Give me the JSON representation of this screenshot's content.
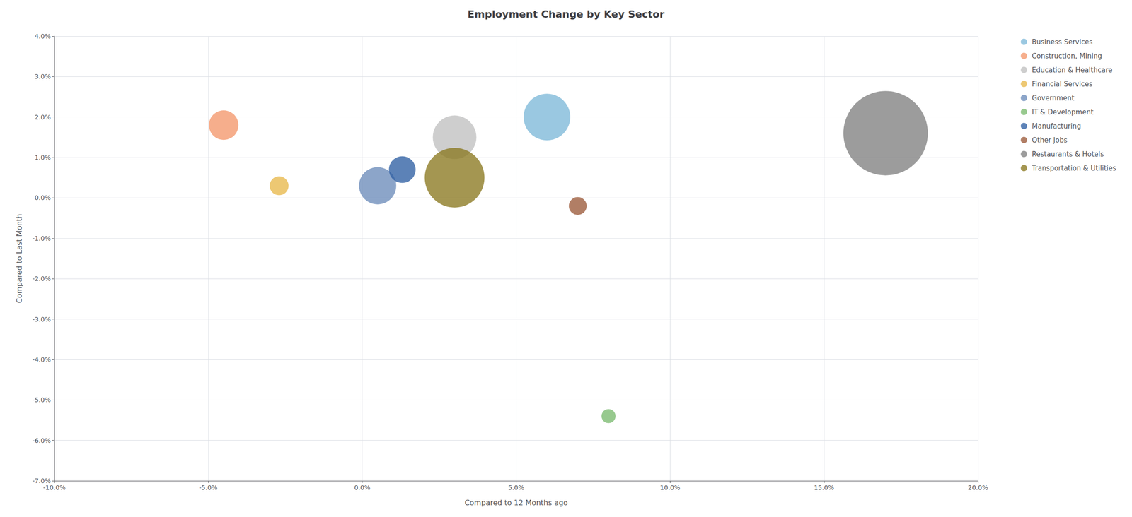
{
  "chart_data": {
    "type": "scatter",
    "title": "Employment Change by Key Sector",
    "xlabel": "Compared to 12 Months ago",
    "ylabel": "Compared to Last Month",
    "xlim": [
      -0.1,
      0.2
    ],
    "ylim": [
      -0.07,
      0.04
    ],
    "xticks": [
      {
        "value": -0.1,
        "label": "-10.0%"
      },
      {
        "value": -0.05,
        "label": "-5.0%"
      },
      {
        "value": 0.0,
        "label": "0.0%"
      },
      {
        "value": 0.05,
        "label": "5.0%"
      },
      {
        "value": 0.1,
        "label": "10.0%"
      },
      {
        "value": 0.15,
        "label": "15.0%"
      },
      {
        "value": 0.2,
        "label": "20.0%"
      }
    ],
    "yticks": [
      {
        "value": -0.07,
        "label": "-7.0%"
      },
      {
        "value": -0.06,
        "label": "-6.0%"
      },
      {
        "value": -0.05,
        "label": "-5.0%"
      },
      {
        "value": -0.04,
        "label": "-4.0%"
      },
      {
        "value": -0.03,
        "label": "-3.0%"
      },
      {
        "value": -0.02,
        "label": "-2.0%"
      },
      {
        "value": -0.01,
        "label": "-1.0%"
      },
      {
        "value": 0.0,
        "label": "0.0%"
      },
      {
        "value": 0.01,
        "label": "1.0%"
      },
      {
        "value": 0.02,
        "label": "2.0%"
      },
      {
        "value": 0.03,
        "label": "3.0%"
      },
      {
        "value": 0.04,
        "label": "4.0%"
      }
    ],
    "grid": true,
    "legend": "right",
    "series": [
      {
        "name": "Business Services",
        "color": "#7db8d9",
        "x": [
          0.06
        ],
        "y": [
          0.02
        ],
        "size": [
          5500
        ]
      },
      {
        "name": "Construction, Mining",
        "color": "#f4976c",
        "x": [
          -0.045
        ],
        "y": [
          0.018
        ],
        "size": [
          2200
        ]
      },
      {
        "name": "Education & Healthcare",
        "color": "#c0c0c0",
        "x": [
          0.03
        ],
        "y": [
          0.015
        ],
        "size": [
          4800
        ]
      },
      {
        "name": "Financial Services",
        "color": "#e8b84b",
        "x": [
          -0.027
        ],
        "y": [
          0.003
        ],
        "size": [
          900
        ]
      },
      {
        "name": "Government",
        "color": "#6b8cba",
        "x": [
          0.005
        ],
        "y": [
          0.003
        ],
        "size": [
          3500
        ]
      },
      {
        "name": "IT & Development",
        "color": "#7aba6e",
        "x": [
          0.08
        ],
        "y": [
          -0.054
        ],
        "size": [
          500
        ]
      },
      {
        "name": "Manufacturing",
        "color": "#2e5fa3",
        "x": [
          0.013
        ],
        "y": [
          0.007
        ],
        "size": [
          1800
        ]
      },
      {
        "name": "Other Jobs",
        "color": "#9b5a3a",
        "x": [
          0.07
        ],
        "y": [
          -0.002
        ],
        "size": [
          800
        ]
      },
      {
        "name": "Restaurants & Hotels",
        "color": "#808080",
        "x": [
          0.17
        ],
        "y": [
          0.016
        ],
        "size": [
          18000
        ]
      },
      {
        "name": "Transportation & Utilities",
        "color": "#8a7820",
        "x": [
          0.03
        ],
        "y": [
          0.005
        ],
        "size": [
          9000
        ]
      }
    ]
  }
}
